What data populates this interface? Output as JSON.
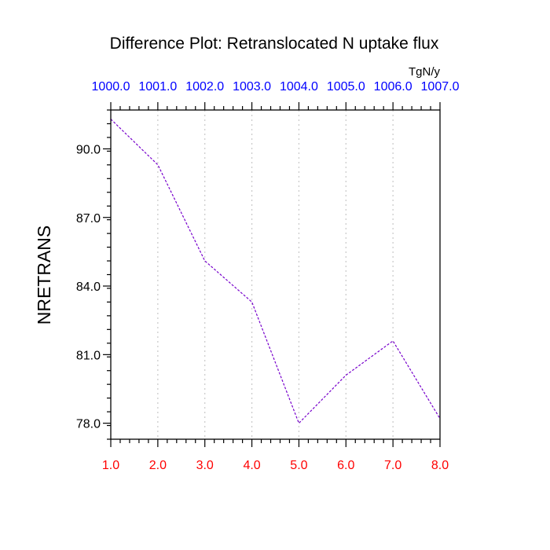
{
  "chart_data": {
    "type": "line",
    "title": "Difference Plot: Retranslocated N uptake flux",
    "units": "TgN/y",
    "ylabel": "NRETRANS",
    "xlabel": "",
    "x": [
      1.0,
      2.0,
      3.0,
      4.0,
      5.0,
      6.0,
      7.0,
      8.0
    ],
    "xlim": [
      1.0,
      8.0
    ],
    "ylim": [
      77.3,
      91.7
    ],
    "bottom_ticks": [
      "1.0",
      "2.0",
      "3.0",
      "4.0",
      "5.0",
      "6.0",
      "7.0",
      "8.0"
    ],
    "top_ticks": [
      "1000.0",
      "1001.0",
      "1002.0",
      "1003.0",
      "1004.0",
      "1005.0",
      "1006.0",
      "1007.0"
    ],
    "y_ticks": [
      {
        "value": 90.0,
        "label": "90.0"
      },
      {
        "value": 87.0,
        "label": "87.0"
      },
      {
        "value": 84.0,
        "label": "84.0"
      },
      {
        "value": 81.0,
        "label": "81.0"
      },
      {
        "value": 78.0,
        "label": "78.0"
      }
    ],
    "y_minor_step": 0.6,
    "x_minor_step": 0.2,
    "series": [
      {
        "values": [
          91.3,
          89.3,
          85.1,
          83.3,
          78.0,
          80.1,
          81.6,
          78.2
        ],
        "color": "#7700cc",
        "dashed": true
      }
    ],
    "grid": "vertical dotted at major x ticks",
    "colors": {
      "bottom_tick_labels": "#ff0000",
      "top_tick_labels": "#0000ff",
      "grid": "#c8c8c8",
      "axes": "#000000"
    }
  }
}
